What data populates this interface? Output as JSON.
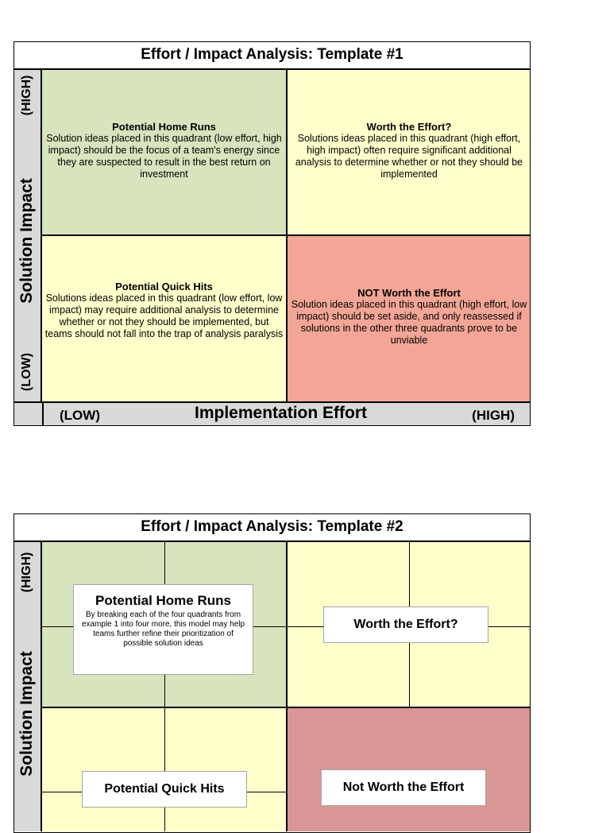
{
  "template1": {
    "title": "Effort / Impact Analysis:  Template #1",
    "y_axis": {
      "label": "Solution Impact",
      "high": "(HIGH)",
      "low": "(LOW)"
    },
    "x_axis": {
      "label": "Implementation Effort",
      "low": "(LOW)",
      "high": "(HIGH)"
    },
    "quadrants": {
      "home_runs": {
        "title": "Potential Home Runs",
        "text": "Solution ideas placed in this quadrant (low effort, high impact) should be the focus of a team's energy since they are suspected to result in the best return on investment"
      },
      "worth_effort": {
        "title": "Worth the Effort?",
        "text": "Solutions ideas placed in this quadrant (high effort, high impact) often require significant additional analysis to determine whether or not they should be implemented"
      },
      "quick_hits": {
        "title": "Potential Quick Hits",
        "text": "Solutions ideas placed in this quadrant (low effort, low impact) may require additional analysis to determine whether or not they should be implemented, but teams should not fall into the trap of analysis paralysis"
      },
      "not_worth": {
        "title": "NOT Worth the Effort",
        "text": "Solution ideas placed in this quadrant (high effort, low impact) should be set aside, and only reassessed if solutions in the other three quadrants prove to be unviable"
      }
    }
  },
  "template2": {
    "title": "Effort / Impact Analysis:  Template #2",
    "y_axis": {
      "label": "Solution Impact",
      "high": "(HIGH)"
    },
    "boxes": {
      "home_runs": {
        "title": "Potential Home Runs",
        "text": "By breaking each of the four quadrants from example 1 into four more, this model may help teams further refine their  prioritization of possible solution ideas"
      },
      "worth_effort": {
        "title": "Worth the Effort?"
      },
      "quick_hits": {
        "title": "Potential Quick Hits"
      },
      "not_worth": {
        "title": "Not Worth the Effort"
      }
    }
  },
  "colors": {
    "green": "#d7e4bd",
    "yellow": "#ffffcc",
    "red_template1": "#f4a696",
    "red_template2": "#da9694",
    "axis_gray": "#d9d9d9"
  }
}
